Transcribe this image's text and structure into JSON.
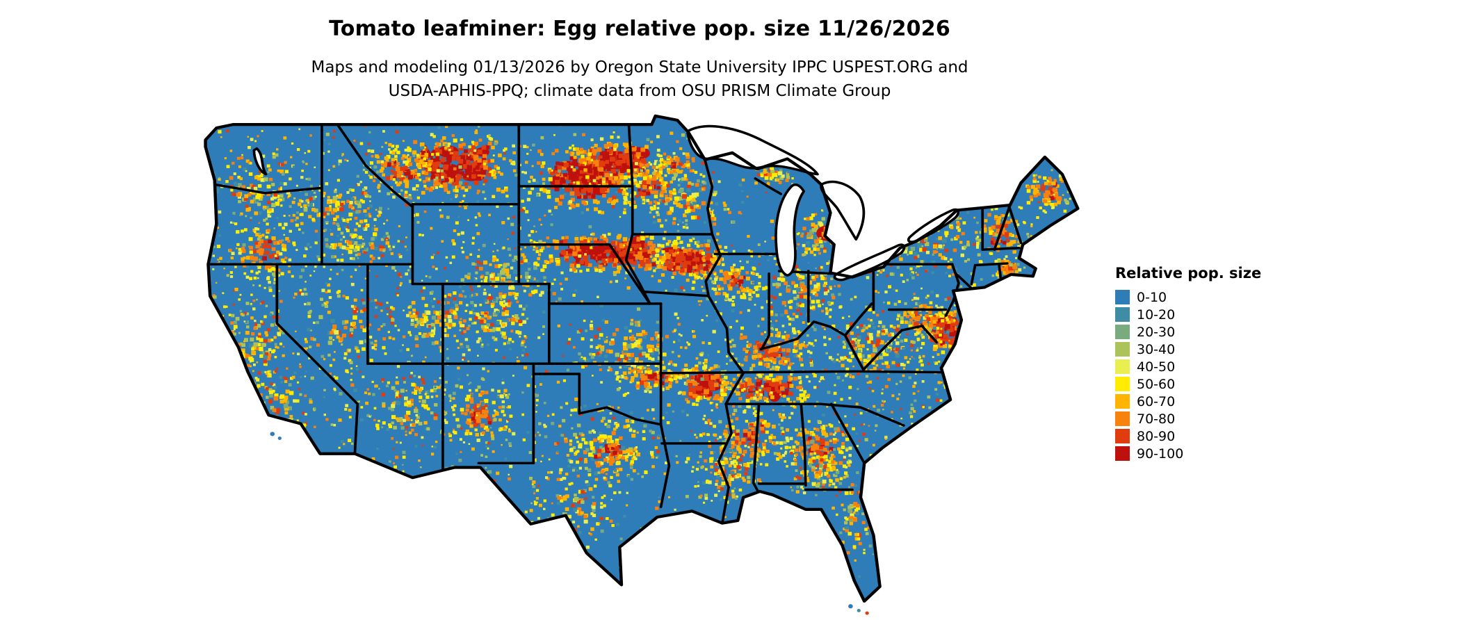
{
  "title": "Tomato leafminer: Egg relative pop. size 11/26/2026",
  "subtitle": {
    "line1": "Maps and modeling 01/13/2026 by Oregon State University IPPC USPEST.ORG and",
    "line2": "USDA-APHIS-PPQ; climate data from OSU PRISM Climate Group"
  },
  "legend": {
    "title": "Relative pop. size",
    "items": [
      {
        "label": "0-10",
        "color": "#2e7cb8"
      },
      {
        "label": "10-20",
        "color": "#3f8da4"
      },
      {
        "label": "20-30",
        "color": "#79ab7f"
      },
      {
        "label": "30-40",
        "color": "#abc359"
      },
      {
        "label": "40-50",
        "color": "#e8ef4e"
      },
      {
        "label": "50-60",
        "color": "#ffec00"
      },
      {
        "label": "60-70",
        "color": "#ffb400"
      },
      {
        "label": "70-80",
        "color": "#f8820e"
      },
      {
        "label": "80-90",
        "color": "#e13c0f"
      },
      {
        "label": "90-100",
        "color": "#be100c"
      }
    ]
  },
  "map": {
    "region": "contiguous-united-states",
    "land_base_color": "#2e7cb8",
    "boundary_color": "#000000",
    "water_color": "#ffffff"
  }
}
